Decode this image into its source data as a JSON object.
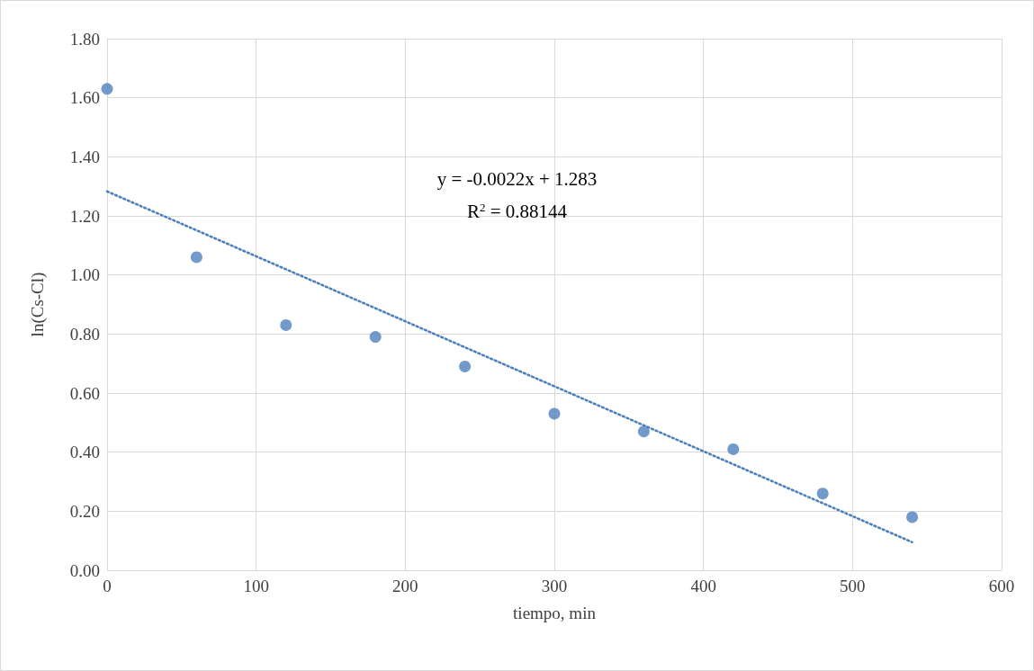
{
  "chart_data": {
    "type": "scatter",
    "xlabel": "tiempo, min",
    "ylabel": "ln(Cs-Cl)",
    "x": [
      0,
      60,
      120,
      180,
      240,
      300,
      360,
      420,
      480,
      540
    ],
    "series": [
      {
        "color": "#4f81bd",
        "marker": "circle",
        "values": [
          1.63,
          1.06,
          0.83,
          0.79,
          0.69,
          0.53,
          0.47,
          0.41,
          0.26,
          0.18
        ]
      },
      {
        "type": "line",
        "color": "#4a7ebb",
        "marker": "none",
        "line_style": "dotted",
        "x": [
          0,
          540
        ],
        "values": [
          1.283,
          0.095
        ]
      }
    ],
    "xlim": [
      0,
      600
    ],
    "xticks": [
      0,
      100,
      200,
      300,
      400,
      500,
      600
    ],
    "ylim": [
      0,
      1.8
    ],
    "yticks": [
      {
        "value": 0,
        "label": "0.00"
      },
      {
        "value": 0.2,
        "label": "0.20"
      },
      {
        "value": 0.4,
        "label": "0.40"
      },
      {
        "value": 0.6,
        "label": "0.60"
      },
      {
        "value": 0.8,
        "label": "0.80"
      },
      {
        "value": 1.0,
        "label": "1.00"
      },
      {
        "value": 1.2,
        "label": "1.20"
      },
      {
        "value": 1.4,
        "label": "1.40"
      },
      {
        "value": 1.6,
        "label": "1.60"
      },
      {
        "value": 1.8,
        "label": "1.80"
      }
    ],
    "annotations": [
      "y = -0.0022x + 1.283",
      "R$^{2}$ = 0.88144"
    ],
    "grid": true
  }
}
